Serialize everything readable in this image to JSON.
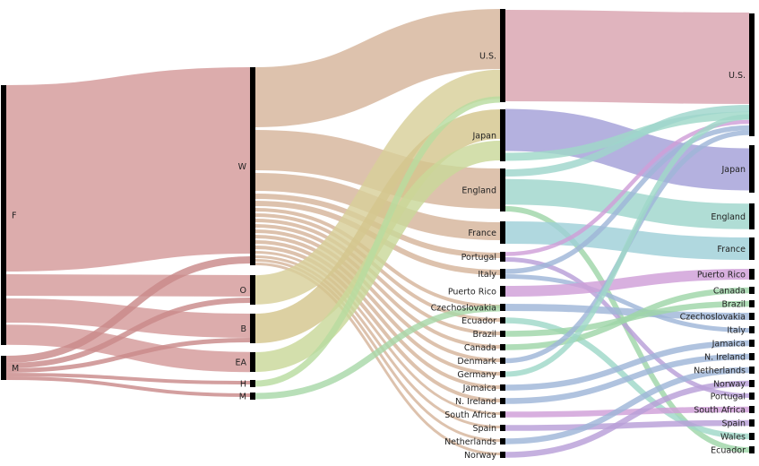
{
  "diagram": {
    "type": "sankey",
    "columns": [
      {
        "name": "column-1",
        "nodes": [
          {
            "id": "F",
            "label": "F"
          },
          {
            "id": "M",
            "label": "M"
          }
        ]
      },
      {
        "name": "column-2",
        "nodes": [
          {
            "id": "W",
            "label": "W"
          },
          {
            "id": "O",
            "label": "O"
          },
          {
            "id": "B",
            "label": "B"
          },
          {
            "id": "EA",
            "label": "EA"
          },
          {
            "id": "H",
            "label": "H"
          },
          {
            "id": "Mx",
            "label": "M"
          }
        ]
      },
      {
        "name": "column-3",
        "nodes": [
          {
            "id": "c3_us",
            "label": "U.S."
          },
          {
            "id": "c3_japan",
            "label": "Japan"
          },
          {
            "id": "c3_england",
            "label": "England"
          },
          {
            "id": "c3_france",
            "label": "France"
          },
          {
            "id": "c3_portugal",
            "label": "Portugal"
          },
          {
            "id": "c3_italy",
            "label": "Italy"
          },
          {
            "id": "c3_puerto_rico",
            "label": "Puerto Rico"
          },
          {
            "id": "c3_czechoslovakia",
            "label": "Czechoslovakia"
          },
          {
            "id": "c3_ecuador",
            "label": "Ecuador"
          },
          {
            "id": "c3_brazil",
            "label": "Brazil"
          },
          {
            "id": "c3_canada",
            "label": "Canada"
          },
          {
            "id": "c3_denmark",
            "label": "Denmark"
          },
          {
            "id": "c3_germany",
            "label": "Germany"
          },
          {
            "id": "c3_jamaica",
            "label": "Jamaica"
          },
          {
            "id": "c3_n_ireland",
            "label": "N. Ireland"
          },
          {
            "id": "c3_south_africa",
            "label": "South Africa"
          },
          {
            "id": "c3_spain",
            "label": "Spain"
          },
          {
            "id": "c3_netherlands",
            "label": "Netherlands"
          },
          {
            "id": "c3_norway",
            "label": "Norway"
          }
        ]
      },
      {
        "name": "column-4",
        "nodes": [
          {
            "id": "c4_us",
            "label": "U.S."
          },
          {
            "id": "c4_japan",
            "label": "Japan"
          },
          {
            "id": "c4_england",
            "label": "England"
          },
          {
            "id": "c4_france",
            "label": "France"
          },
          {
            "id": "c4_puerto_rico",
            "label": "Puerto Rico"
          },
          {
            "id": "c4_canada",
            "label": "Canada"
          },
          {
            "id": "c4_brazil",
            "label": "Brazil"
          },
          {
            "id": "c4_czechoslovakia",
            "label": "Czechoslovakia"
          },
          {
            "id": "c4_italy",
            "label": "Italy"
          },
          {
            "id": "c4_jamaica",
            "label": "Jamaica"
          },
          {
            "id": "c4_n_ireland",
            "label": "N. Ireland"
          },
          {
            "id": "c4_netherlands",
            "label": "Netherlands"
          },
          {
            "id": "c4_norway",
            "label": "Norway"
          },
          {
            "id": "c4_portugal",
            "label": "Portugal"
          },
          {
            "id": "c4_south_africa",
            "label": "South Africa"
          },
          {
            "id": "c4_spain",
            "label": "Spain"
          },
          {
            "id": "c4_wales",
            "label": "Wales"
          },
          {
            "id": "c4_ecuador",
            "label": "Ecuador"
          }
        ]
      }
    ],
    "colors": {
      "F": "#d49a9a",
      "M": "#c98a8a",
      "W": "#d6b49b",
      "O": "#d8d09a",
      "B": "#d4c68e",
      "EA": "#c9d89a",
      "H": "#b8dca0",
      "Mx": "#a8d8a8",
      "us": "#d9a3b0",
      "japan": "#a3a0d8",
      "england": "#9fd6cc",
      "france": "#9fcfd8",
      "green": "#9fd6a8",
      "blue": "#9fb6d8",
      "purple": "#b89fd8",
      "magenta": "#d09fd8",
      "teal": "#9fd8c8",
      "node": "#000000"
    }
  }
}
